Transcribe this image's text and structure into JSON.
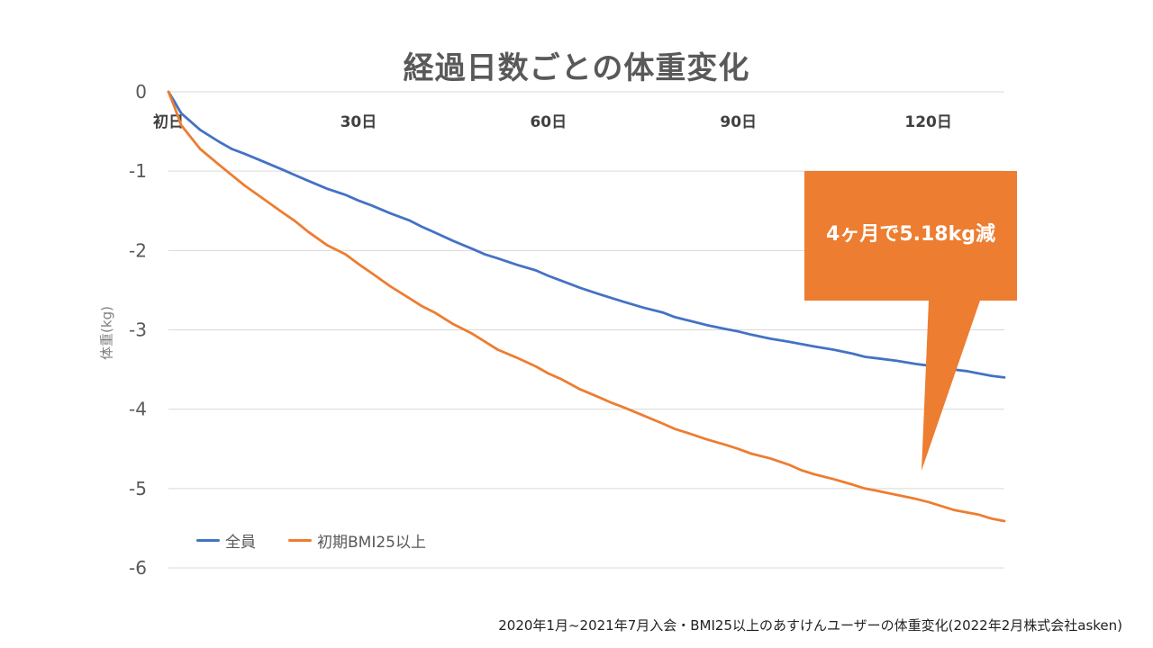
{
  "chart_data": {
    "type": "line",
    "title": "経過日数ごとの体重変化",
    "ylabel": "体重(kg)",
    "xlabel": "",
    "xlim": [
      0,
      132
    ],
    "ylim": [
      -6,
      0
    ],
    "yticks": [
      0,
      -1,
      -2,
      -3,
      -4,
      -5,
      -6
    ],
    "ytick_labels": [
      "0",
      "-1",
      "-2",
      "-3",
      "-4",
      "-5",
      "-6"
    ],
    "xticks": [
      0,
      30,
      60,
      90,
      120
    ],
    "xtick_labels": [
      "初日",
      "30日",
      "60日",
      "90日",
      "120日"
    ],
    "series": [
      {
        "name": "全員",
        "color": "#4472c4",
        "x": [
          0,
          1,
          2,
          5,
          8,
          10,
          12,
          15,
          18,
          20,
          22,
          25,
          28,
          30,
          32,
          35,
          38,
          40,
          42,
          45,
          48,
          50,
          52,
          55,
          58,
          60,
          62,
          65,
          68,
          70,
          72,
          75,
          78,
          80,
          82,
          85,
          88,
          90,
          92,
          95,
          98,
          100,
          102,
          105,
          108,
          110,
          112,
          115,
          118,
          120,
          122,
          124,
          126,
          128,
          130,
          132
        ],
        "values": [
          0,
          -0.13,
          -0.27,
          -0.48,
          -0.63,
          -0.72,
          -0.78,
          -0.88,
          -0.98,
          -1.05,
          -1.12,
          -1.22,
          -1.3,
          -1.37,
          -1.43,
          -1.53,
          -1.62,
          -1.7,
          -1.77,
          -1.88,
          -1.98,
          -2.05,
          -2.1,
          -2.18,
          -2.25,
          -2.32,
          -2.38,
          -2.47,
          -2.55,
          -2.6,
          -2.65,
          -2.72,
          -2.78,
          -2.84,
          -2.88,
          -2.94,
          -2.99,
          -3.02,
          -3.06,
          -3.11,
          -3.15,
          -3.18,
          -3.21,
          -3.25,
          -3.3,
          -3.34,
          -3.36,
          -3.39,
          -3.43,
          -3.45,
          -3.48,
          -3.5,
          -3.52,
          -3.55,
          -3.58,
          -3.6
        ]
      },
      {
        "name": "初期BMI25以上",
        "color": "#ed7d31",
        "x": [
          0,
          1,
          2,
          5,
          8,
          10,
          12,
          15,
          18,
          20,
          22,
          25,
          28,
          30,
          32,
          35,
          38,
          40,
          42,
          45,
          48,
          50,
          52,
          55,
          58,
          60,
          62,
          65,
          68,
          70,
          72,
          75,
          78,
          80,
          82,
          85,
          88,
          90,
          92,
          95,
          98,
          100,
          102,
          105,
          108,
          110,
          112,
          115,
          118,
          120,
          122,
          124,
          126,
          128,
          130,
          132
        ],
        "values": [
          0,
          -0.2,
          -0.42,
          -0.72,
          -0.92,
          -1.05,
          -1.18,
          -1.35,
          -1.52,
          -1.63,
          -1.76,
          -1.93,
          -2.05,
          -2.17,
          -2.28,
          -2.45,
          -2.6,
          -2.7,
          -2.78,
          -2.93,
          -3.05,
          -3.15,
          -3.25,
          -3.35,
          -3.46,
          -3.55,
          -3.62,
          -3.75,
          -3.85,
          -3.92,
          -3.98,
          -4.08,
          -4.18,
          -4.25,
          -4.3,
          -4.38,
          -4.45,
          -4.5,
          -4.56,
          -4.62,
          -4.7,
          -4.77,
          -4.82,
          -4.88,
          -4.95,
          -5.0,
          -5.03,
          -5.08,
          -5.13,
          -5.17,
          -5.22,
          -5.27,
          -5.3,
          -5.33,
          -5.38,
          -5.41
        ]
      }
    ],
    "annotation": {
      "text": "4ヶ月で5.18kg減",
      "color": "#ed7d31"
    }
  },
  "legend": {
    "all": "全員",
    "bmi": "初期BMI25以上"
  },
  "source": "2020年1月~2021年7月入会・BMI25以上のあすけんユーザーの体重変化(2022年2月株式会社asken)"
}
